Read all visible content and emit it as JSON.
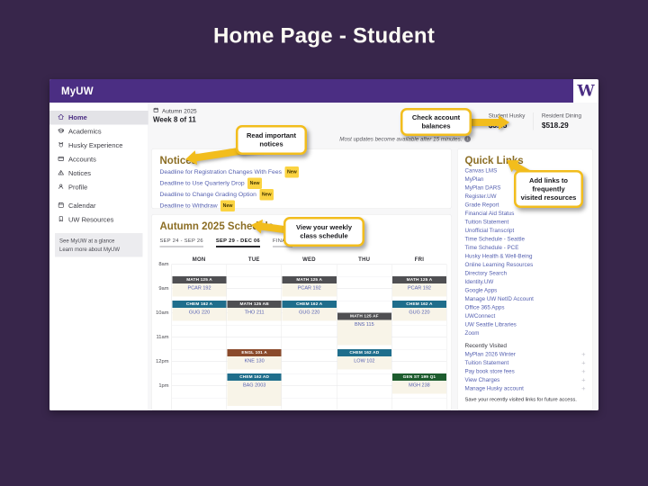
{
  "slide": {
    "title": "Home Page - Student"
  },
  "app": {
    "brand": "MyUW",
    "logo_letter": "W",
    "sidebar": {
      "items": [
        {
          "icon": "home-icon",
          "label": "Home",
          "active": true
        },
        {
          "icon": "academics-icon",
          "label": "Academics"
        },
        {
          "icon": "husky-experience-icon",
          "label": "Husky Experience"
        },
        {
          "icon": "accounts-icon",
          "label": "Accounts"
        },
        {
          "icon": "notices-icon",
          "label": "Notices"
        },
        {
          "icon": "profile-icon",
          "label": "Profile"
        },
        {
          "icon": "calendar-icon",
          "label": "Calendar"
        },
        {
          "icon": "resources-icon",
          "label": "UW Resources"
        }
      ],
      "footer_links": [
        "See MyUW at a glance",
        "Learn more about MyUW"
      ]
    },
    "topbar": {
      "term": "Autumn 2025",
      "week": "Week 8 of 11",
      "balances": [
        {
          "label": "Student Husky",
          "amount": "$3.45"
        },
        {
          "label": "Resident Dining",
          "amount": "$518.29"
        }
      ],
      "update_note": "Most updates become available after 15 minutes."
    },
    "notices": {
      "heading": "Notices",
      "items": [
        {
          "text": "Deadline for Registration Changes With Fees",
          "badge": "New"
        },
        {
          "text": "Deadline to Use Quarterly Drop",
          "badge": "New"
        },
        {
          "text": "Deadline to Change Grading Option",
          "badge": "New"
        },
        {
          "text": "Deadline to Withdraw",
          "badge": "New"
        }
      ]
    },
    "schedule": {
      "heading": "Autumn 2025 Schedule",
      "tabs": [
        {
          "label": "SEP 24 - SEP 26",
          "active": false
        },
        {
          "label": "SEP 29 - DEC 06",
          "active": true
        },
        {
          "label": "FINALS",
          "active": false
        }
      ],
      "days": [
        "MON",
        "TUE",
        "WED",
        "THU",
        "FRI"
      ],
      "times": [
        "8am",
        "9am",
        "10am",
        "11am",
        "12pm",
        "1pm"
      ],
      "events": [
        {
          "day": 0,
          "start": "8:30",
          "end": "9:20",
          "code": "MATH 125 A",
          "room": "PCAR 192",
          "color": "#4f4f52"
        },
        {
          "day": 2,
          "start": "8:30",
          "end": "9:20",
          "code": "MATH 125 A",
          "room": "PCAR 192",
          "color": "#4f4f52"
        },
        {
          "day": 4,
          "start": "8:30",
          "end": "9:20",
          "code": "MATH 125 A",
          "room": "PCAR 192",
          "color": "#4f4f52"
        },
        {
          "day": 0,
          "start": "9:30",
          "end": "10:20",
          "code": "CHEM 162 A",
          "room": "GUG 220",
          "color": "#1f6e8c"
        },
        {
          "day": 2,
          "start": "9:30",
          "end": "10:20",
          "code": "CHEM 162 A",
          "room": "GUG 220",
          "color": "#1f6e8c"
        },
        {
          "day": 4,
          "start": "9:30",
          "end": "10:20",
          "code": "CHEM 162 A",
          "room": "GUG 220",
          "color": "#1f6e8c"
        },
        {
          "day": 1,
          "start": "9:30",
          "end": "10:20",
          "code": "MATH 125 AB",
          "room": "THO 211",
          "color": "#4f4f52"
        },
        {
          "day": 3,
          "start": "10:00",
          "end": "11:20",
          "code": "MATH 125 AF",
          "room": "BNS 115",
          "color": "#4f4f52"
        },
        {
          "day": 1,
          "start": "11:30",
          "end": "12:20",
          "code": "ENGL 101 A",
          "room": "KNE 130",
          "color": "#8a4a2b"
        },
        {
          "day": 3,
          "start": "11:30",
          "end": "12:20",
          "code": "CHEM 162 AD",
          "room": "LOW 102",
          "color": "#1f6e8c"
        },
        {
          "day": 1,
          "start": "12:30",
          "end": "13:50",
          "code": "CHEM 162 AD",
          "room": "BAG 2003",
          "color": "#1f6e8c"
        },
        {
          "day": 4,
          "start": "12:30",
          "end": "13:20",
          "code": "GEN ST 199 Q1",
          "room": "MGH 238",
          "color": "#1d5c2e"
        }
      ]
    },
    "quicklinks": {
      "heading": "Quick Links",
      "links": [
        "Canvas LMS",
        "MyPlan",
        "MyPlan DARS",
        "Register.UW",
        "Grade Report",
        "Financial Aid Status",
        "Tuition Statement",
        "Unofficial Transcript",
        "Time Schedule - Seattle",
        "Time Schedule - PCE",
        "Husky Health & Well-Being",
        "Online Learning Resources",
        "Directory Search",
        "Identity.UW",
        "Google Apps",
        "Manage UW NetID Account",
        "Office 365 Apps",
        "UWConnect",
        "UW Seattle Libraries",
        "Zoom"
      ],
      "recent_heading": "Recently Visited",
      "recent": [
        "MyPlan 2026 Winter",
        "Tuition Statement",
        "Pay book store fees",
        "View Charges",
        "Manage Husky account"
      ],
      "footer": "Save your recently visited links for future access."
    }
  },
  "callouts": [
    {
      "text": "Read important notices"
    },
    {
      "text": "Check account balances"
    },
    {
      "text": "Add links to frequently visited resources"
    },
    {
      "text": "View your weekly class schedule"
    }
  ],
  "colors": {
    "slide_bg": "#38264b",
    "uw_purple": "#4b2e83",
    "gold_heading": "#8c6e25",
    "link": "#5560b0",
    "badge_bg": "#fbd341",
    "callout_yellow": "#f2bd1d"
  }
}
